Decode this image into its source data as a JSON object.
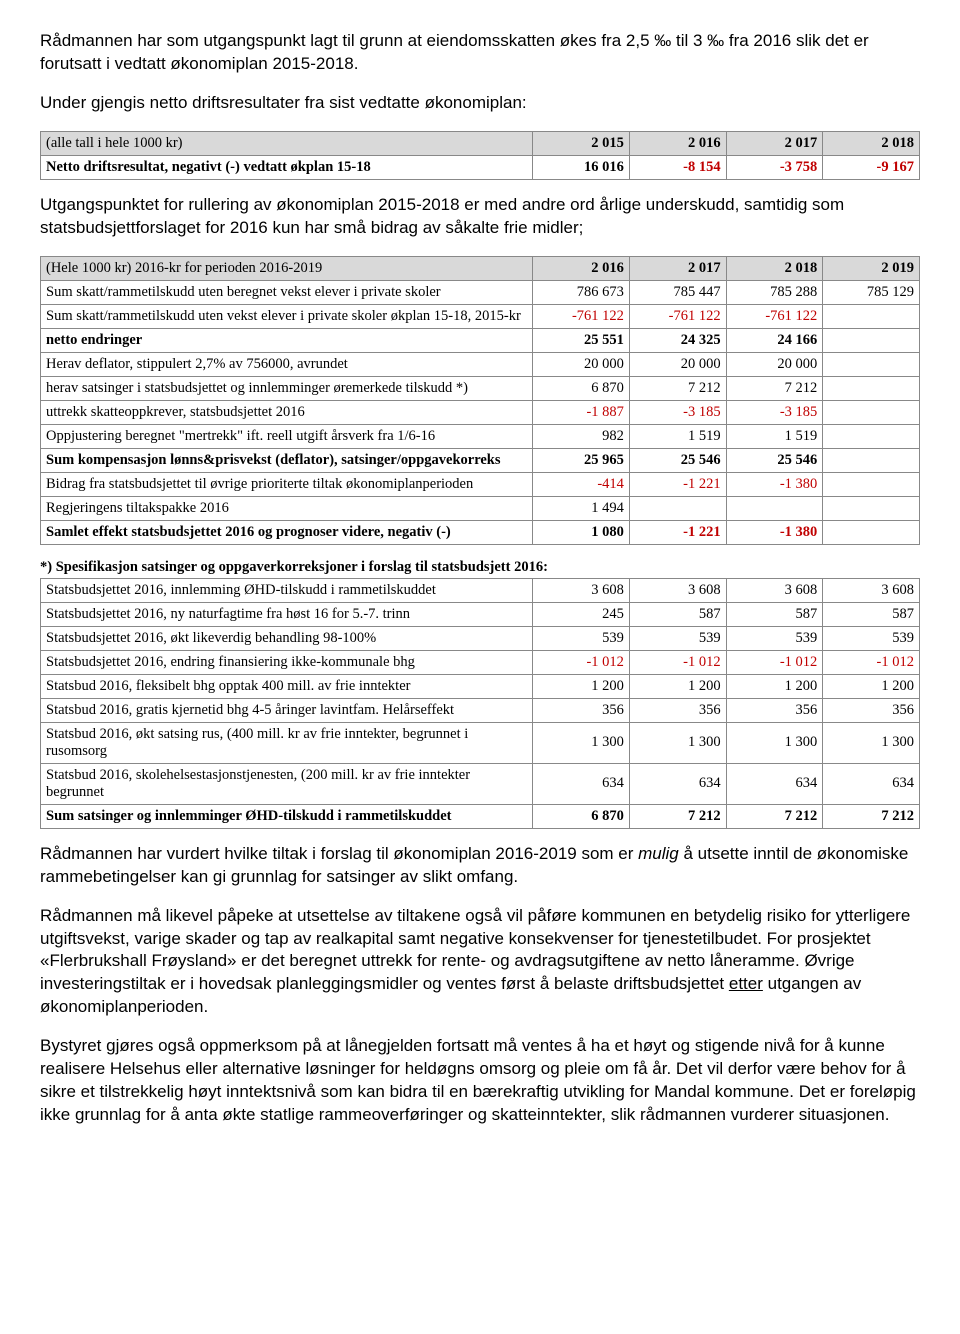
{
  "para1": "Rådmannen har som utgangspunkt lagt til grunn at eiendomsskatten økes fra 2,5 ‰ til 3 ‰ fra 2016 slik det er forutsatt i vedtatt økonomiplan 2015-2018.",
  "para2": "Under gjengis netto driftsresultater fra sist vedtatte økonomiplan:",
  "table1": {
    "header": [
      "(alle tall i hele 1000 kr)",
      "2 015",
      "2 016",
      "2 017",
      "2 018"
    ],
    "row_label": "Netto driftsresultat, negativt (-) vedtatt økplan 15-18",
    "row_vals": [
      "16 016",
      "-8 154",
      "-3 758",
      "-9 167"
    ]
  },
  "para3": "Utgangspunktet for rullering av økonomiplan 2015-2018 er med andre ord årlige underskudd, samtidig som statsbudsjettforslaget for 2016 kun har små bidrag av såkalte frie midler;",
  "table2": {
    "header": [
      "(Hele 1000 kr) 2016-kr for perioden 2016-2019",
      "2 016",
      "2 017",
      "2 018",
      "2 019"
    ],
    "rows": [
      {
        "label": "Sum skatt/rammetilskudd uten beregnet vekst elever i private skoler",
        "v": [
          "786 673",
          "785 447",
          "785 288",
          "785 129"
        ]
      },
      {
        "label": "Sum skatt/rammetilskudd uten vekst elever i private skoler økplan 15-18, 2015-kr",
        "v": [
          "-761 122",
          "-761 122",
          "-761 122",
          ""
        ]
      },
      {
        "label": "netto endringer",
        "bold": true,
        "v": [
          "25 551",
          "24 325",
          "24 166",
          ""
        ]
      },
      {
        "label": "Herav deflator, stippulert 2,7% av 756000, avrundet",
        "v": [
          "20 000",
          "20 000",
          "20 000",
          ""
        ]
      },
      {
        "label": "herav satsinger i statsbudsjettet og innlemminger øremerkede tilskudd *)",
        "v": [
          "6 870",
          "7 212",
          "7 212",
          ""
        ]
      },
      {
        "label": "uttrekk skatteoppkrever, statsbudsjettet 2016",
        "v": [
          "-1 887",
          "-3 185",
          "-3 185",
          ""
        ]
      },
      {
        "label": "Oppjustering beregnet \"mertrekk\" ift. reell utgift årsverk fra 1/6-16",
        "v": [
          "982",
          "1 519",
          "1 519",
          ""
        ]
      },
      {
        "label": "Sum kompensasjon lønns&prisvekst (deflator), satsinger/oppgavekorreks",
        "bold": true,
        "v": [
          "25 965",
          "25 546",
          "25 546",
          ""
        ]
      },
      {
        "label": "Bidrag fra statsbudsjettet til øvrige prioriterte tiltak økonomiplanperioden",
        "v": [
          "-414",
          "-1 221",
          "-1 380",
          ""
        ]
      },
      {
        "label": "Regjeringens tiltakspakke 2016",
        "v": [
          "1 494",
          "",
          "",
          ""
        ]
      },
      {
        "label": "Samlet effekt statsbudsjettet 2016 og prognoser videre, negativ (-)",
        "bold": true,
        "v": [
          "1 080",
          "-1 221",
          "-1 380",
          ""
        ]
      }
    ]
  },
  "note3": "*) Spesifikasjon satsinger og oppgaverkorreksjoner i forslag til statsbudsjett 2016:",
  "table3": {
    "rows": [
      {
        "label": "Statsbudsjettet 2016, innlemming ØHD-tilskudd i rammetilskuddet",
        "v": [
          "3 608",
          "3 608",
          "3 608",
          "3 608"
        ]
      },
      {
        "label": "Statsbudsjettet 2016, ny naturfagtime fra høst 16 for 5.-7. trinn",
        "v": [
          "245",
          "587",
          "587",
          "587"
        ]
      },
      {
        "label": "Statsbudsjettet 2016, økt likeverdig behandling 98-100%",
        "v": [
          "539",
          "539",
          "539",
          "539"
        ]
      },
      {
        "label": "Statsbudsjettet 2016, endring finansiering ikke-kommunale bhg",
        "v": [
          "-1 012",
          "-1 012",
          "-1 012",
          "-1 012"
        ]
      },
      {
        "label": "Statsbud 2016, fleksibelt bhg opptak 400 mill. av frie inntekter",
        "v": [
          "1 200",
          "1 200",
          "1 200",
          "1 200"
        ]
      },
      {
        "label": "Statsbud 2016, gratis kjernetid bhg 4-5 åringer lavintfam. Helårseffekt",
        "v": [
          "356",
          "356",
          "356",
          "356"
        ]
      },
      {
        "label": "Statsbud 2016, økt satsing rus, (400 mill. kr av frie inntekter, begrunnet i rusomsorg",
        "v": [
          "1 300",
          "1 300",
          "1 300",
          "1 300"
        ]
      },
      {
        "label": "Statsbud 2016, skolehelsestasjonstjenesten, (200 mill. kr av frie inntekter begrunnet",
        "v": [
          "634",
          "634",
          "634",
          "634"
        ]
      },
      {
        "label": "Sum satsinger og innlemminger ØHD-tilskudd i rammetilskuddet",
        "bold": true,
        "v": [
          "6 870",
          "7 212",
          "7 212",
          "7 212"
        ]
      }
    ]
  },
  "para4_a": "Rådmannen har vurdert hvilke tiltak i forslag til økonomiplan 2016-2019 som er ",
  "para4_em": "mulig",
  "para4_b": " å utsette inntil de økonomiske rammebetingelser kan gi grunnlag for satsinger av slikt omfang.",
  "para5_a": "Rådmannen må likevel påpeke at utsettelse av tiltakene også vil påføre kommunen en betydelig risiko for ytterligere utgiftsvekst, varige skader og tap av realkapital samt negative konsekvenser for tjenestetilbudet. For prosjektet «Flerbrukshall Frøysland» er det beregnet uttrekk for rente- og avdragsutgiftene av netto låneramme. Øvrige investeringstiltak er i hovedsak planleggingsmidler og ventes først å belaste driftsbudsjettet ",
  "para5_u": "etter",
  "para5_b": " utgangen av økonomiplanperioden.",
  "para6": "Bystyret gjøres også oppmerksom på at lånegjelden fortsatt må ventes å ha et høyt og stigende nivå for å kunne realisere Helsehus eller alternative løsninger for heldøgns omsorg og pleie om få år. Det vil derfor være behov for å sikre et tilstrekkelig høyt inntektsnivå som kan bidra til en bærekraftig utvikling for Mandal kommune. Det er foreløpig ikke grunnlag for å anta økte statlige rammeoverføringer og skatteinntekter, slik rådmannen vurderer situasjonen."
}
